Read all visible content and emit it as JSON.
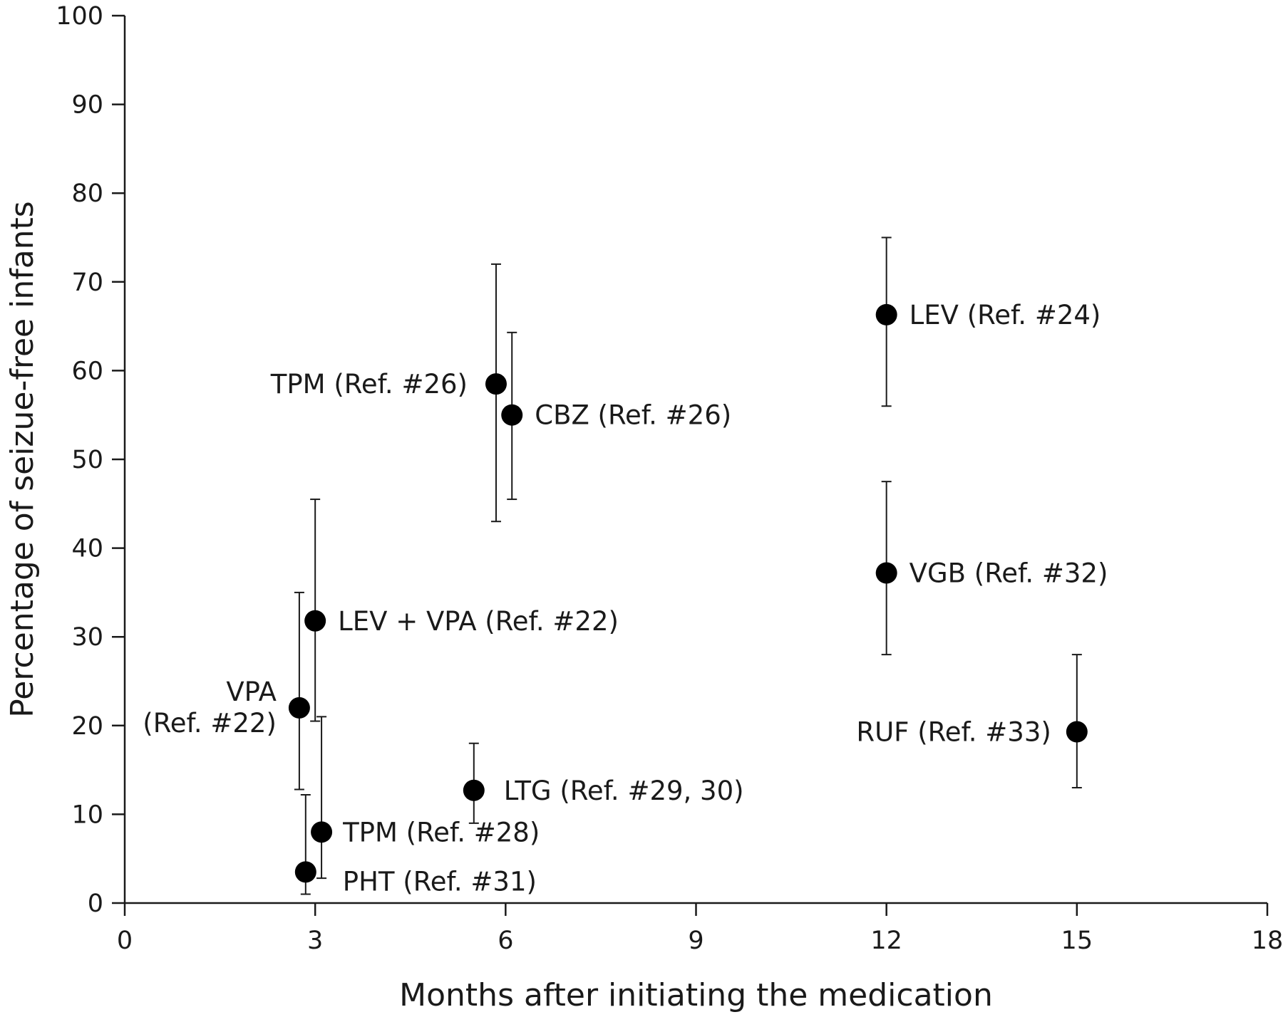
{
  "chart_data": {
    "type": "scatter",
    "xlabel": "Months after initiating the medication",
    "ylabel": "Percentage of seizue-free infants",
    "xlim": [
      0,
      18
    ],
    "ylim": [
      0,
      100
    ],
    "xticks": [
      0,
      3,
      6,
      9,
      12,
      15,
      18
    ],
    "yticks": [
      0,
      10,
      20,
      30,
      40,
      50,
      60,
      70,
      80,
      90,
      100
    ],
    "grid": false,
    "legend": "none",
    "marker_color": "#000000",
    "points": [
      {
        "label": "TPM (Ref. #26)",
        "x": 5.85,
        "y": 58.5,
        "err_low": 43.0,
        "err_high": 72.0
      },
      {
        "label": "CBZ (Ref. #26)",
        "x": 6.1,
        "y": 55.0,
        "err_low": 45.5,
        "err_high": 64.3
      },
      {
        "label": "LEV (Ref. #24)",
        "x": 12.0,
        "y": 66.3,
        "err_low": 56.0,
        "err_high": 75.0
      },
      {
        "label": "VGB (Ref. #32)",
        "x": 12.0,
        "y": 37.2,
        "err_low": 28.0,
        "err_high": 47.5
      },
      {
        "label": "RUF (Ref. #33)",
        "x": 15.0,
        "y": 19.3,
        "err_low": 13.0,
        "err_high": 28.0
      },
      {
        "label": "LEV + VPA (Ref. #22)",
        "x": 3.0,
        "y": 31.8,
        "err_low": 20.5,
        "err_high": 45.5
      },
      {
        "label_lines": [
          "VPA",
          "(Ref. #22)"
        ],
        "x": 2.75,
        "y": 22.0,
        "err_low": 12.8,
        "err_high": 35.0
      },
      {
        "label": "LTG (Ref. #29, 30)",
        "x": 5.5,
        "y": 12.7,
        "err_low": 9.0,
        "err_high": 18.0
      },
      {
        "label": "TPM (Ref. #28)",
        "x": 3.1,
        "y": 8.0,
        "err_low": 2.8,
        "err_high": 21.0
      },
      {
        "label": "PHT (Ref. #31)",
        "x": 2.85,
        "y": 3.5,
        "err_low": 1.0,
        "err_high": 12.2
      }
    ]
  }
}
